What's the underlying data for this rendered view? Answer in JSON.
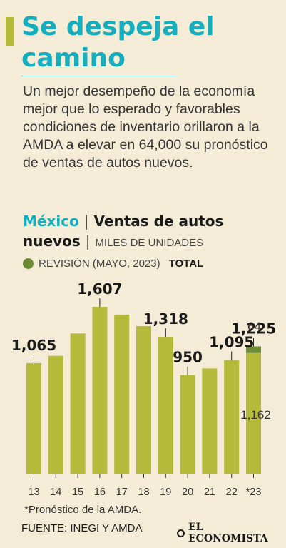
{
  "title": "Se despeja el camino",
  "summary": "Un mejor desempeño de la economía mejor que lo esperado y favorables condiciones de inventario orillaron a la AMDA a elevar en 64,000 su pronóstico de ventas de autos nuevos.",
  "subhead": {
    "country": "México",
    "separator": "|",
    "topic": "Ventas de autos nuevos",
    "units": "MILES DE UNIDADES"
  },
  "legend": {
    "revision_label": "REVISIÓN (MAYO, 2023)",
    "total_label": "TOTAL"
  },
  "colors": {
    "bar": "#b5ba3a",
    "revision": "#6f8a36",
    "title": "#14aebe",
    "background": "#f4ecd6"
  },
  "chart_data": {
    "type": "bar",
    "categories": [
      "13",
      "14",
      "15",
      "16",
      "17",
      "18",
      "19",
      "20",
      "21",
      "22",
      "*23"
    ],
    "series": [
      {
        "name": "",
        "values": [
          1065,
          1135,
          1351,
          1607,
          1532,
          1421,
          1318,
          950,
          1014,
          1095,
          1162
        ]
      },
      {
        "name": "REVISIÓN (MAYO, 2023)",
        "values": [
          0,
          0,
          0,
          0,
          0,
          0,
          0,
          0,
          0,
          0,
          64
        ]
      }
    ],
    "data_labels": [
      {
        "index": 0,
        "text": "1,065"
      },
      {
        "index": 3,
        "text": "1,607"
      },
      {
        "index": 6,
        "text": "1,318"
      },
      {
        "index": 7,
        "text": "950"
      },
      {
        "index": 9,
        "text": "1,095"
      },
      {
        "index": 10,
        "text": "1,225"
      }
    ],
    "segment_labels": {
      "base": "1,162",
      "revision": "64"
    },
    "ylim": [
      0,
      1607
    ],
    "grid": false
  },
  "footnote": "*Pronóstico de la AMDA.",
  "source": "FUENTE: INEGI Y AMDA",
  "brand": "EL ECONOMISTA"
}
